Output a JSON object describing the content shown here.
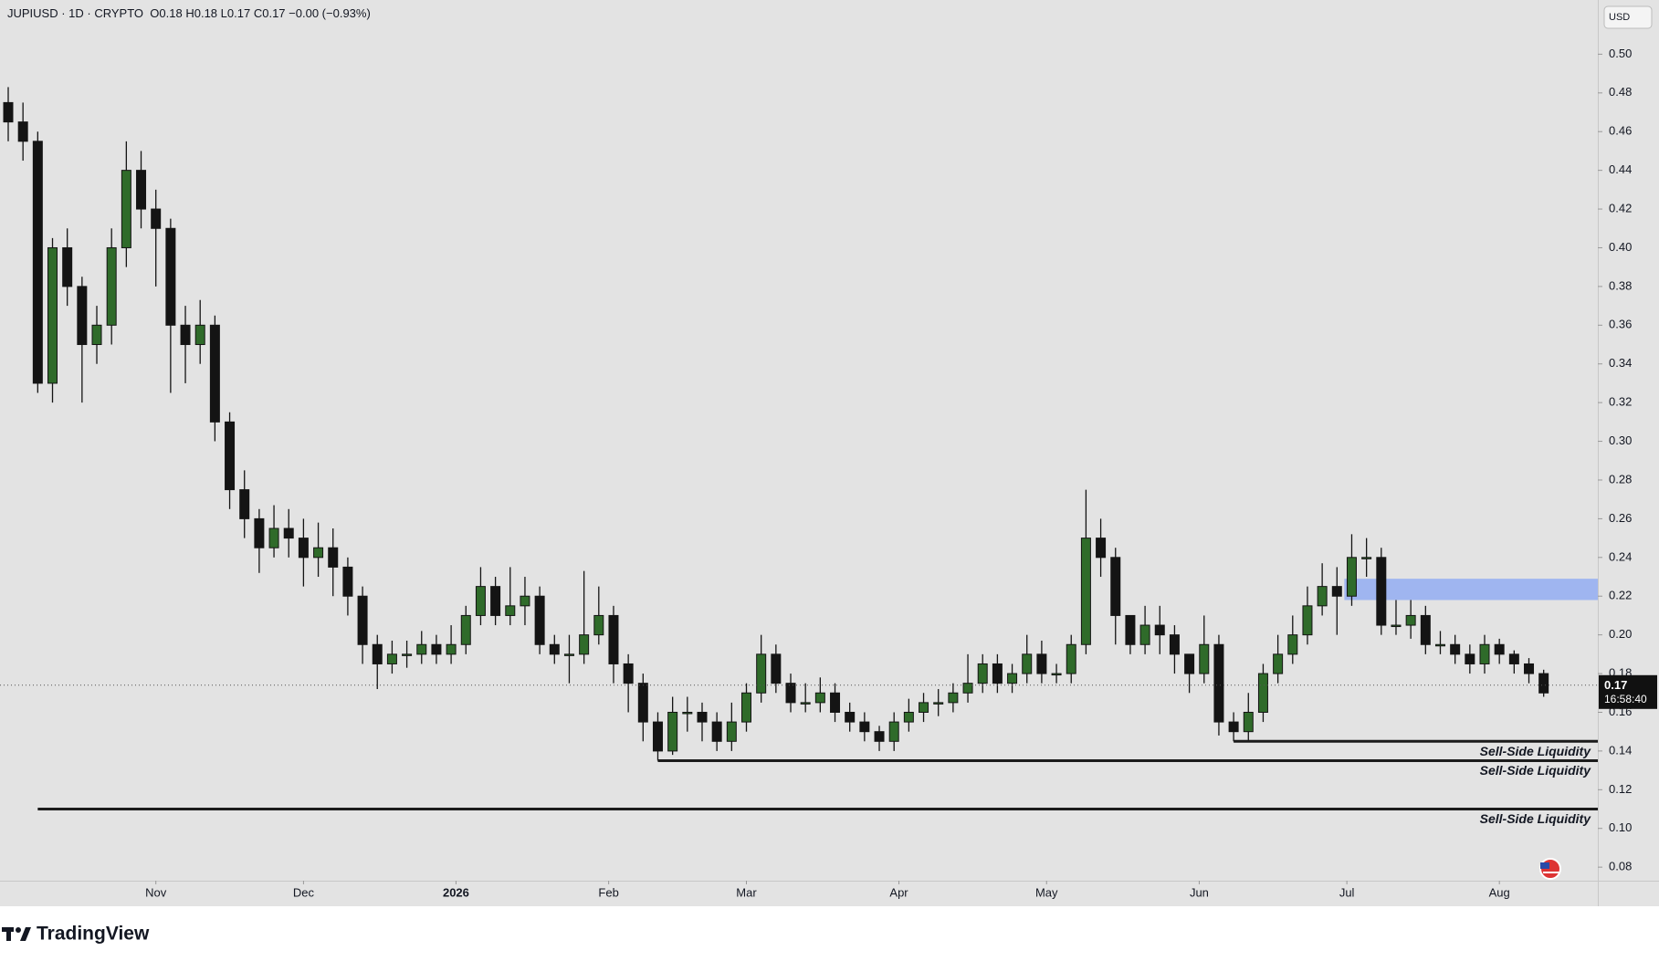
{
  "chart_data": {
    "type": "candlestick",
    "header": {
      "symbol": "JUPIUSD · 1D · CRYPTO",
      "open_label": "O",
      "open": 0.18,
      "high_label": "H",
      "high": 0.18,
      "low_label": "L",
      "low": 0.17,
      "close_label": "C",
      "close": 0.17,
      "change": "−0.00 (−0.93%)"
    },
    "currency": "USD",
    "up_color": "#2f6b2a",
    "down_color": "#141414",
    "open": [
      0.475,
      0.465,
      0.455,
      0.33,
      0.4,
      0.38,
      0.35,
      0.36,
      0.4,
      0.44,
      0.42,
      0.41,
      0.36,
      0.35,
      0.36,
      0.31,
      0.275,
      0.26,
      0.245,
      0.255,
      0.25,
      0.24,
      0.245,
      0.235,
      0.22,
      0.195,
      0.185,
      0.19,
      0.19,
      0.195,
      0.19,
      0.195,
      0.21,
      0.225,
      0.21,
      0.215,
      0.22,
      0.195,
      0.19,
      0.19,
      0.2,
      0.21,
      0.185,
      0.175,
      0.155,
      0.14,
      0.16,
      0.16,
      0.155,
      0.145,
      0.155,
      0.17,
      0.19,
      0.175,
      0.165,
      0.165,
      0.17,
      0.16,
      0.155,
      0.15,
      0.145,
      0.155,
      0.16,
      0.165,
      0.165,
      0.17,
      0.175,
      0.185,
      0.175,
      0.18,
      0.19,
      0.18,
      0.18,
      0.195,
      0.25,
      0.24,
      0.21,
      0.195,
      0.205,
      0.2,
      0.19,
      0.18,
      0.195,
      0.155,
      0.15,
      0.16,
      0.18,
      0.19,
      0.2,
      0.215,
      0.225,
      0.22,
      0.24,
      0.24,
      0.205,
      0.205,
      0.21,
      0.195,
      0.195,
      0.19,
      0.185,
      0.195,
      0.19,
      0.185,
      0.18
    ],
    "high": [
      0.483,
      0.475,
      0.46,
      0.405,
      0.41,
      0.385,
      0.37,
      0.41,
      0.455,
      0.45,
      0.43,
      0.415,
      0.37,
      0.373,
      0.365,
      0.315,
      0.285,
      0.265,
      0.267,
      0.265,
      0.26,
      0.258,
      0.255,
      0.24,
      0.225,
      0.2,
      0.197,
      0.197,
      0.202,
      0.2,
      0.205,
      0.215,
      0.235,
      0.23,
      0.235,
      0.23,
      0.225,
      0.2,
      0.2,
      0.233,
      0.225,
      0.215,
      0.19,
      0.18,
      0.16,
      0.168,
      0.168,
      0.165,
      0.16,
      0.165,
      0.175,
      0.2,
      0.195,
      0.18,
      0.175,
      0.178,
      0.175,
      0.165,
      0.16,
      0.153,
      0.16,
      0.167,
      0.17,
      0.172,
      0.175,
      0.19,
      0.19,
      0.19,
      0.185,
      0.2,
      0.197,
      0.185,
      0.2,
      0.275,
      0.26,
      0.245,
      0.21,
      0.215,
      0.215,
      0.205,
      0.19,
      0.21,
      0.2,
      0.16,
      0.17,
      0.185,
      0.2,
      0.21,
      0.225,
      0.237,
      0.235,
      0.252,
      0.25,
      0.245,
      0.218,
      0.218,
      0.215,
      0.202,
      0.2,
      0.195,
      0.2,
      0.198,
      0.192,
      0.188,
      0.182
    ],
    "low": [
      0.455,
      0.445,
      0.325,
      0.32,
      0.37,
      0.32,
      0.34,
      0.35,
      0.39,
      0.41,
      0.38,
      0.325,
      0.33,
      0.34,
      0.3,
      0.265,
      0.25,
      0.232,
      0.24,
      0.24,
      0.225,
      0.23,
      0.22,
      0.21,
      0.185,
      0.172,
      0.18,
      0.183,
      0.185,
      0.185,
      0.185,
      0.19,
      0.205,
      0.205,
      0.205,
      0.205,
      0.19,
      0.185,
      0.175,
      0.185,
      0.195,
      0.175,
      0.16,
      0.145,
      0.135,
      0.138,
      0.15,
      0.145,
      0.14,
      0.14,
      0.15,
      0.165,
      0.17,
      0.16,
      0.16,
      0.16,
      0.155,
      0.15,
      0.145,
      0.14,
      0.14,
      0.15,
      0.155,
      0.158,
      0.16,
      0.165,
      0.17,
      0.17,
      0.17,
      0.175,
      0.175,
      0.175,
      0.175,
      0.19,
      0.23,
      0.195,
      0.19,
      0.19,
      0.19,
      0.18,
      0.17,
      0.175,
      0.148,
      0.145,
      0.145,
      0.155,
      0.175,
      0.185,
      0.195,
      0.21,
      0.2,
      0.215,
      0.23,
      0.2,
      0.2,
      0.198,
      0.19,
      0.19,
      0.185,
      0.18,
      0.18,
      0.185,
      0.18,
      0.175,
      0.168
    ],
    "close": [
      0.465,
      0.455,
      0.33,
      0.4,
      0.38,
      0.35,
      0.36,
      0.4,
      0.44,
      0.42,
      0.41,
      0.36,
      0.35,
      0.36,
      0.31,
      0.275,
      0.26,
      0.245,
      0.255,
      0.25,
      0.24,
      0.245,
      0.235,
      0.22,
      0.195,
      0.185,
      0.19,
      0.19,
      0.195,
      0.19,
      0.195,
      0.21,
      0.225,
      0.21,
      0.215,
      0.22,
      0.195,
      0.19,
      0.19,
      0.2,
      0.21,
      0.185,
      0.175,
      0.155,
      0.14,
      0.16,
      0.16,
      0.155,
      0.145,
      0.155,
      0.17,
      0.19,
      0.175,
      0.165,
      0.165,
      0.17,
      0.16,
      0.155,
      0.15,
      0.145,
      0.155,
      0.16,
      0.165,
      0.165,
      0.17,
      0.175,
      0.185,
      0.175,
      0.18,
      0.19,
      0.18,
      0.18,
      0.195,
      0.25,
      0.24,
      0.21,
      0.195,
      0.205,
      0.2,
      0.19,
      0.18,
      0.195,
      0.155,
      0.15,
      0.16,
      0.18,
      0.19,
      0.2,
      0.215,
      0.225,
      0.22,
      0.24,
      0.24,
      0.205,
      0.205,
      0.21,
      0.195,
      0.195,
      0.19,
      0.185,
      0.195,
      0.19,
      0.185,
      0.18,
      0.17
    ],
    "xticks": [
      {
        "value": 10,
        "label": "Nov"
      },
      {
        "value": 20,
        "label": "Dec"
      },
      {
        "value": 30.33,
        "label": "2026"
      },
      {
        "value": 40.67,
        "label": "Feb"
      },
      {
        "value": 50,
        "label": "Mar"
      },
      {
        "value": 60.33,
        "label": "Apr"
      },
      {
        "value": 70.33,
        "label": "May"
      },
      {
        "value": 80.67,
        "label": "Jun"
      },
      {
        "value": 90.67,
        "label": "Jul"
      },
      {
        "value": 101,
        "label": "Aug"
      }
    ],
    "ylim": [
      0.073,
      0.528
    ],
    "yticks": [
      {
        "value": 0.08,
        "label": "0.08"
      },
      {
        "value": 0.1,
        "label": "0.10"
      },
      {
        "value": 0.12,
        "label": "0.12"
      },
      {
        "value": 0.14,
        "label": "0.14"
      },
      {
        "value": 0.16,
        "label": "0.16"
      },
      {
        "value": 0.18,
        "label": "0.18"
      },
      {
        "value": 0.2,
        "label": "0.20"
      },
      {
        "value": 0.22,
        "label": "0.22"
      },
      {
        "value": 0.24,
        "label": "0.24"
      },
      {
        "value": 0.26,
        "label": "0.26"
      },
      {
        "value": 0.28,
        "label": "0.28"
      },
      {
        "value": 0.3,
        "label": "0.30"
      },
      {
        "value": 0.32,
        "label": "0.32"
      },
      {
        "value": 0.34,
        "label": "0.34"
      },
      {
        "value": 0.36,
        "label": "0.36"
      },
      {
        "value": 0.38,
        "label": "0.38"
      },
      {
        "value": 0.4,
        "label": "0.40"
      },
      {
        "value": 0.42,
        "label": "0.42"
      },
      {
        "value": 0.44,
        "label": "0.44"
      },
      {
        "value": 0.46,
        "label": "0.46"
      },
      {
        "value": 0.48,
        "label": "0.48"
      },
      {
        "value": 0.5,
        "label": "0.50"
      }
    ],
    "grid": false,
    "last_price": {
      "value": 0.174,
      "label": "0.17",
      "countdown": "16:58:40"
    },
    "levels": [
      {
        "text": "Sell-Side Liquidity",
        "y": 0.145,
        "x": 83
      },
      {
        "text": "Sell-Side Liquidity",
        "y": 0.135,
        "x": 44
      },
      {
        "text": "Sell-Side Liquidity",
        "y": 0.11,
        "x": 2
      }
    ],
    "zone": {
      "ylim": [
        0.218,
        0.229
      ],
      "x": 90.5,
      "color": "#9fb5f0"
    },
    "brand": "TradingView"
  }
}
